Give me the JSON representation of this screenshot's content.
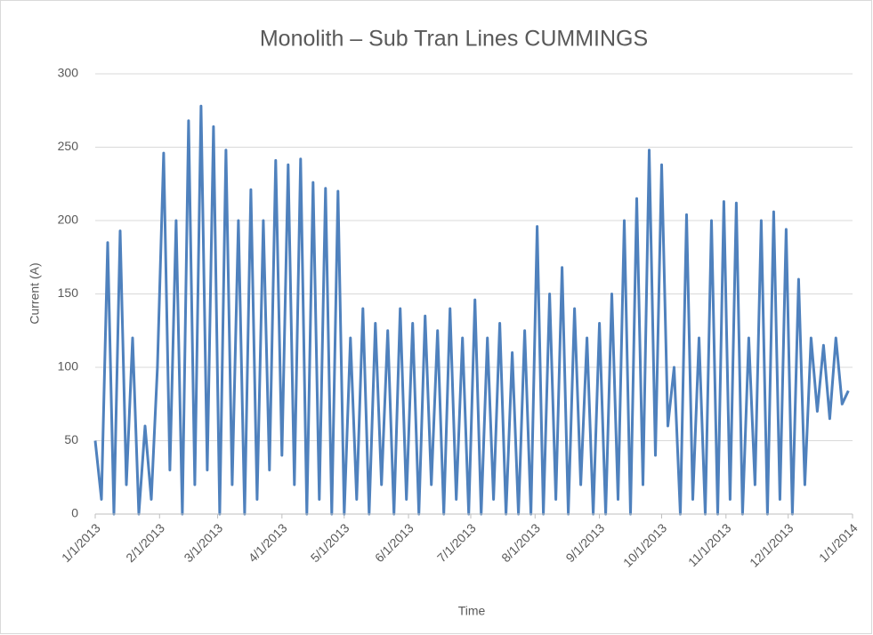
{
  "chart_data": {
    "type": "line",
    "title": "Monolith – Sub Tran Lines CUMMINGS",
    "x_label": "Time",
    "y_label": "Current (A)",
    "x": [
      "2013-01-01",
      "2013-01-04",
      "2013-01-07",
      "2013-01-10",
      "2013-01-13",
      "2013-01-16",
      "2013-01-19",
      "2013-01-22",
      "2013-01-25",
      "2013-01-28",
      "2013-01-31",
      "2013-02-03",
      "2013-02-06",
      "2013-02-09",
      "2013-02-12",
      "2013-02-15",
      "2013-02-18",
      "2013-02-21",
      "2013-02-24",
      "2013-02-27",
      "2013-03-02",
      "2013-03-05",
      "2013-03-08",
      "2013-03-11",
      "2013-03-14",
      "2013-03-17",
      "2013-03-20",
      "2013-03-23",
      "2013-03-26",
      "2013-03-29",
      "2013-04-01",
      "2013-04-04",
      "2013-04-07",
      "2013-04-10",
      "2013-04-13",
      "2013-04-16",
      "2013-04-19",
      "2013-04-22",
      "2013-04-25",
      "2013-04-28",
      "2013-05-01",
      "2013-05-04",
      "2013-05-07",
      "2013-05-10",
      "2013-05-13",
      "2013-05-16",
      "2013-05-19",
      "2013-05-22",
      "2013-05-25",
      "2013-05-28",
      "2013-05-31",
      "2013-06-03",
      "2013-06-06",
      "2013-06-09",
      "2013-06-12",
      "2013-06-15",
      "2013-06-18",
      "2013-06-21",
      "2013-06-24",
      "2013-06-27",
      "2013-06-30",
      "2013-07-03",
      "2013-07-06",
      "2013-07-09",
      "2013-07-12",
      "2013-07-15",
      "2013-07-18",
      "2013-07-21",
      "2013-07-24",
      "2013-07-27",
      "2013-07-30",
      "2013-08-02",
      "2013-08-05",
      "2013-08-08",
      "2013-08-11",
      "2013-08-14",
      "2013-08-17",
      "2013-08-20",
      "2013-08-23",
      "2013-08-26",
      "2013-08-29",
      "2013-09-01",
      "2013-09-04",
      "2013-09-07",
      "2013-09-10",
      "2013-09-13",
      "2013-09-16",
      "2013-09-19",
      "2013-09-22",
      "2013-09-25",
      "2013-09-28",
      "2013-10-01",
      "2013-10-04",
      "2013-10-07",
      "2013-10-10",
      "2013-10-13",
      "2013-10-16",
      "2013-10-19",
      "2013-10-22",
      "2013-10-25",
      "2013-10-28",
      "2013-10-31",
      "2013-11-03",
      "2013-11-06",
      "2013-11-09",
      "2013-11-12",
      "2013-11-15",
      "2013-11-18",
      "2013-11-21",
      "2013-11-24",
      "2013-11-27",
      "2013-11-30",
      "2013-12-03",
      "2013-12-06",
      "2013-12-09",
      "2013-12-12",
      "2013-12-15",
      "2013-12-18",
      "2013-12-21",
      "2013-12-24",
      "2013-12-27",
      "2013-12-30"
    ],
    "series": [
      {
        "name": "Current",
        "color": "#4f81bd",
        "values": [
          50,
          10,
          185,
          0,
          193,
          20,
          120,
          0,
          60,
          10,
          100,
          246,
          30,
          200,
          0,
          268,
          20,
          278,
          30,
          264,
          0,
          248,
          20,
          200,
          0,
          221,
          10,
          200,
          30,
          241,
          40,
          238,
          20,
          242,
          0,
          226,
          10,
          222,
          0,
          220,
          0,
          120,
          10,
          140,
          0,
          130,
          20,
          125,
          0,
          140,
          10,
          130,
          0,
          135,
          20,
          125,
          0,
          140,
          10,
          120,
          0,
          146,
          0,
          120,
          10,
          130,
          0,
          110,
          0,
          125,
          0,
          196,
          0,
          150,
          10,
          168,
          0,
          140,
          20,
          120,
          0,
          130,
          0,
          150,
          10,
          200,
          0,
          215,
          20,
          248,
          40,
          238,
          60,
          100,
          0,
          204,
          10,
          120,
          0,
          200,
          0,
          213,
          10,
          212,
          0,
          120,
          20,
          200,
          0,
          206,
          10,
          194,
          0,
          160,
          20,
          120,
          70,
          115,
          65,
          120,
          75,
          84
        ]
      }
    ],
    "xlim": [
      "1/1/2013",
      "1/1/2014"
    ],
    "xticks": [
      "1/1/2013",
      "2/1/2013",
      "3/1/2013",
      "4/1/2013",
      "5/1/2013",
      "6/1/2013",
      "7/1/2013",
      "8/1/2013",
      "9/1/2013",
      "10/1/2013",
      "11/1/2013",
      "12/1/2013",
      "1/1/2014"
    ],
    "ylim": [
      0,
      300
    ],
    "yticks": [
      0,
      50,
      100,
      150,
      200,
      250,
      300
    ],
    "grid": true
  }
}
